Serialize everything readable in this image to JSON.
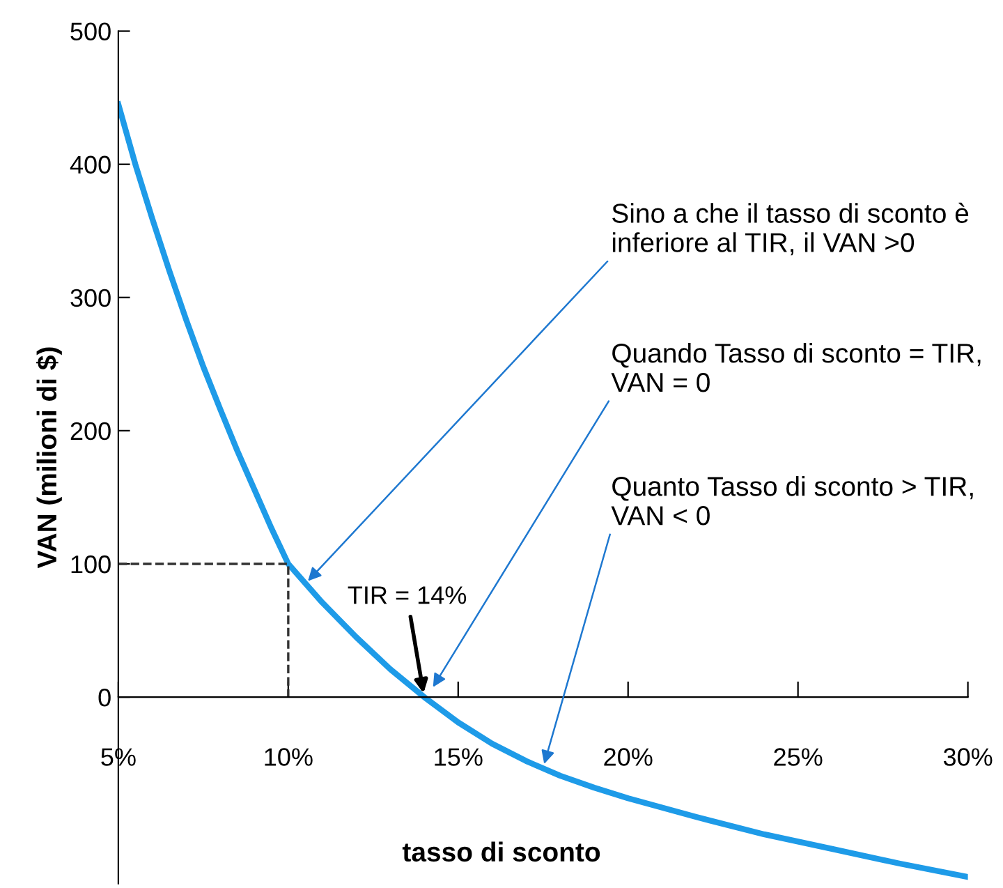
{
  "chart_data": {
    "type": "line",
    "xlabel": "tasso di sconto",
    "ylabel": "VAN (milioni di $)",
    "series": [
      {
        "color": "#1e9be8",
        "x": [
          5,
          5.5,
          6,
          6.5,
          7,
          7.5,
          8,
          8.5,
          9,
          9.5,
          10,
          11,
          12,
          13,
          14,
          15,
          16,
          17,
          18,
          19,
          20,
          22,
          24,
          26,
          28,
          30
        ],
        "values": [
          445,
          400,
          359,
          320,
          283,
          248,
          216,
          185,
          156,
          127,
          100,
          71,
          45,
          21,
          0,
          -19,
          -35,
          -48,
          -59,
          -68,
          -76,
          -90,
          -103,
          -114,
          -125,
          -135
        ]
      },
      {
        "color": "#333333",
        "line_style": "dashed",
        "x": [
          5,
          10,
          10
        ],
        "values": [
          100,
          100,
          0
        ]
      }
    ],
    "xlim": [
      5,
      30
    ],
    "ylim": [
      -140,
      500
    ],
    "xticks": [
      {
        "value": 5,
        "label": "5%"
      },
      {
        "value": 10,
        "label": "10%"
      },
      {
        "value": 15,
        "label": "15%"
      },
      {
        "value": 20,
        "label": "20%"
      },
      {
        "value": 25,
        "label": "25%"
      },
      {
        "value": 30,
        "label": "30%"
      }
    ],
    "yticks": [
      0,
      100,
      200,
      300,
      400,
      500
    ],
    "grid": false,
    "legend": false,
    "annotations": [
      {
        "text": "TIR = 14%",
        "x": 14,
        "y": 0
      },
      {
        "text": "Sino a che il tasso di sconto è\ninferiore al TIR, il VAN >0",
        "x": 10.5,
        "y": 85
      },
      {
        "text": "Quando Tasso di sconto = TIR,\nVAN = 0",
        "x": 14.2,
        "y": 5
      },
      {
        "text": "Quanto Tasso di sconto > TIR,\nVAN < 0",
        "x": 17.5,
        "y": -53
      }
    ]
  }
}
